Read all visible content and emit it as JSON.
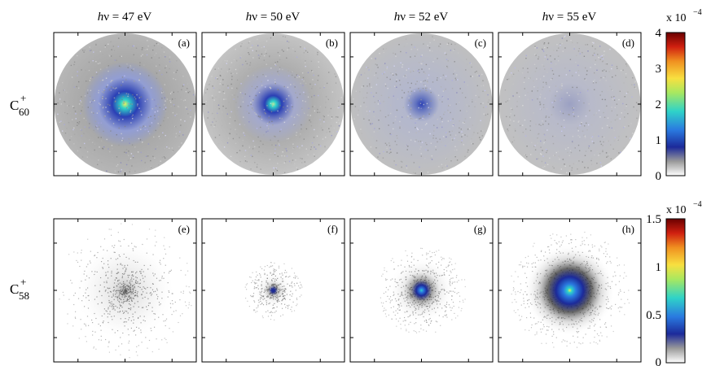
{
  "columns": [
    {
      "prefix": "h",
      "symbol": "ν",
      "value": " = 47 eV"
    },
    {
      "prefix": "h",
      "symbol": "ν",
      "value": " = 50 eV"
    },
    {
      "prefix": "h",
      "symbol": "ν",
      "value": " = 52 eV"
    },
    {
      "prefix": "h",
      "symbol": "ν",
      "value": " = 55 eV"
    }
  ],
  "rows": [
    {
      "ion": "C",
      "charge": "+",
      "subscript": "60",
      "panels": [
        "(a)",
        "(b)",
        "(c)",
        "(d)"
      ],
      "colorbar": {
        "exponent_label": "x 10",
        "exponent": "−4",
        "ticks": [
          "4",
          "3",
          "2",
          "1",
          "0"
        ],
        "max": 4,
        "min": 0
      }
    },
    {
      "ion": "C",
      "charge": "+",
      "subscript": "58",
      "panels": [
        "(e)",
        "(f)",
        "(g)",
        "(h)"
      ],
      "colorbar": {
        "exponent_label": "x 10",
        "exponent": "−4",
        "ticks": [
          "1.5",
          "1",
          "0.5",
          "0"
        ],
        "max": 1.5,
        "min": 0
      }
    }
  ],
  "colors": {
    "frame": "#000000",
    "gray_speckle": "#8a8a8a",
    "blue_core": "#2a3fb5",
    "cyan_center": "#2fd3c8",
    "yellow_center": "#e8f060"
  },
  "colormap": [
    "#ffffff",
    "#9a9a9a",
    "#1c2a9a",
    "#2a7ae0",
    "#2fd3c8",
    "#a8e860",
    "#f8e040",
    "#f09020",
    "#d02010",
    "#6a0000"
  ]
}
